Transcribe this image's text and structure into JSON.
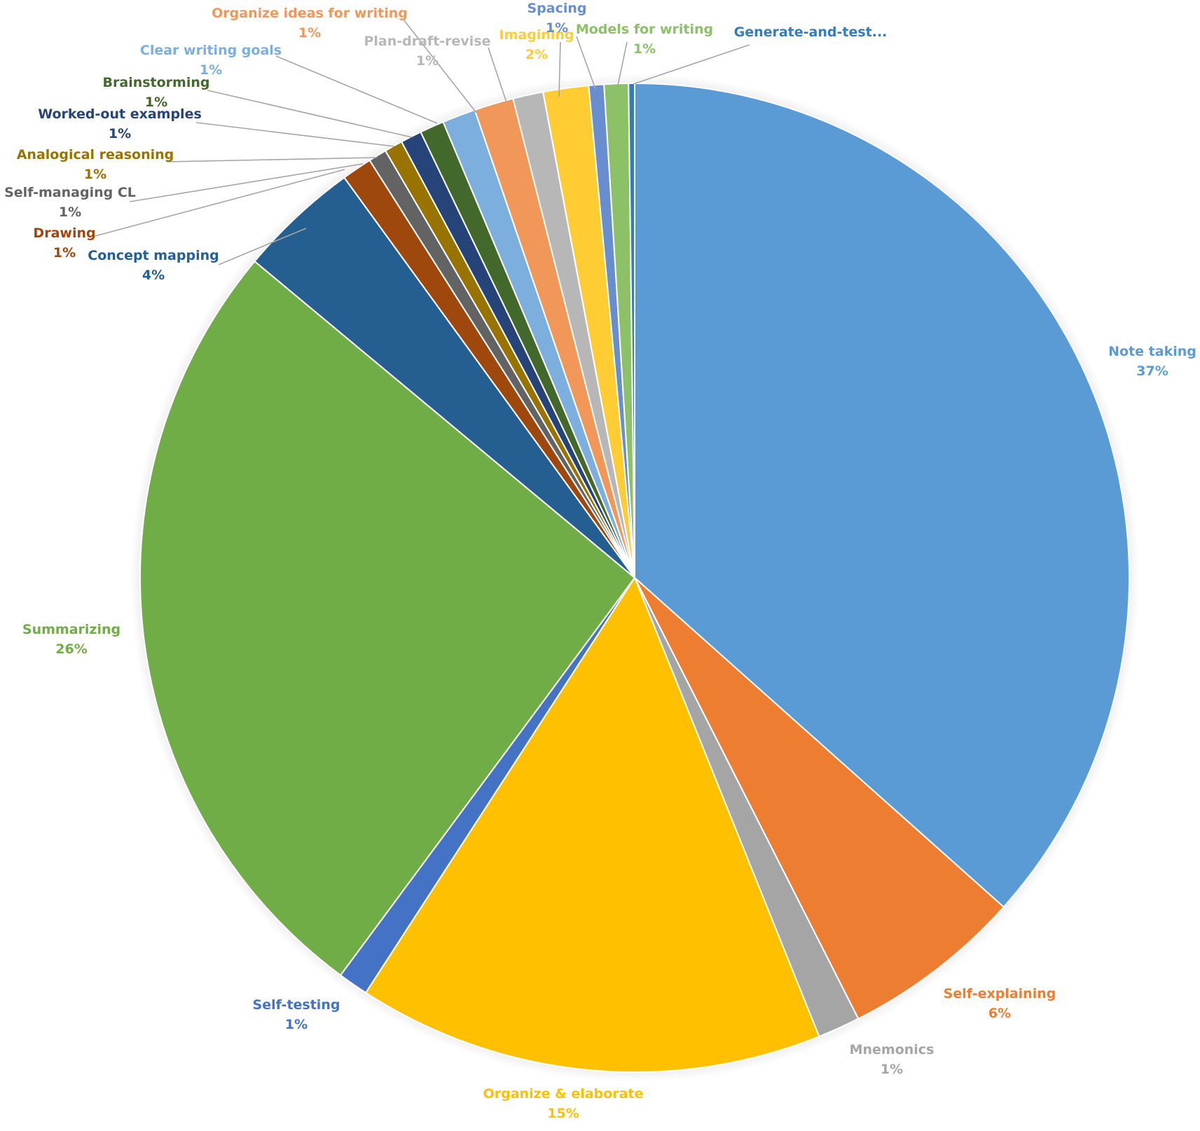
{
  "chart_data": {
    "type": "pie",
    "title": "",
    "slices": [
      {
        "label": "Note taking",
        "pct_label": "37%",
        "value": 37.0,
        "color": "#5b9bd5",
        "label_color": "#5b9bd5"
      },
      {
        "label": "Self-explaining",
        "pct_label": "6%",
        "value": 6.0,
        "color": "#ed7d31",
        "label_color": "#ed7d31"
      },
      {
        "label": "Mnemonics",
        "pct_label": "1%",
        "value": 1.4,
        "color": "#a5a5a5",
        "label_color": "#a5a5a5"
      },
      {
        "label": "Organize & elaborate",
        "pct_label": "15%",
        "value": 15.4,
        "color": "#ffc000",
        "label_color": "#ffc000"
      },
      {
        "label": "Self-testing",
        "pct_label": "1%",
        "value": 1.0,
        "color": "#4472c4",
        "label_color": "#4472c4"
      },
      {
        "label": "Summarizing",
        "pct_label": "26%",
        "value": 26.2,
        "color": "#70ad47",
        "label_color": "#70ad47"
      },
      {
        "label": "Concept mapping",
        "pct_label": "4%",
        "value": 4.0,
        "color": "#255e91",
        "label_color": "#255e91"
      },
      {
        "label": "Drawing",
        "pct_label": "1%",
        "value": 1.0,
        "color": "#9e480e",
        "label_color": "#9e480e"
      },
      {
        "label": "Self-managing CL",
        "pct_label": "1%",
        "value": 0.6,
        "color": "#636363",
        "label_color": "#636363"
      },
      {
        "label": "Analogical reasoning",
        "pct_label": "1%",
        "value": 0.6,
        "color": "#997300",
        "label_color": "#997300"
      },
      {
        "label": "Worked-out examples",
        "pct_label": "1%",
        "value": 0.7,
        "color": "#264478",
        "label_color": "#264478"
      },
      {
        "label": "Brainstorming",
        "pct_label": "1%",
        "value": 0.8,
        "color": "#43682b",
        "label_color": "#43682b"
      },
      {
        "label": "Clear writing goals",
        "pct_label": "1%",
        "value": 1.1,
        "color": "#7cafdd",
        "label_color": "#7cafdd"
      },
      {
        "label": "Organize ideas for writing",
        "pct_label": "1%",
        "value": 1.3,
        "color": "#f1975a",
        "label_color": "#f1975a"
      },
      {
        "label": "Plan-draft-revise",
        "pct_label": "1%",
        "value": 1.0,
        "color": "#b7b7b7",
        "label_color": "#b7b7b7"
      },
      {
        "label": "Imagining",
        "pct_label": "2%",
        "value": 1.5,
        "color": "#ffcd33",
        "label_color": "#ffcd33"
      },
      {
        "label": "Spacing",
        "pct_label": "1%",
        "value": 0.5,
        "color": "#698ed0",
        "label_color": "#698ed0"
      },
      {
        "label": "Models for writing",
        "pct_label": "1%",
        "value": 0.8,
        "color": "#8cc168",
        "label_color": "#8cc168"
      },
      {
        "label": "Generate-and-test...",
        "pct_label": "",
        "value": 0.2,
        "color": "#327dc2",
        "label_color": "#327dc2"
      }
    ]
  }
}
